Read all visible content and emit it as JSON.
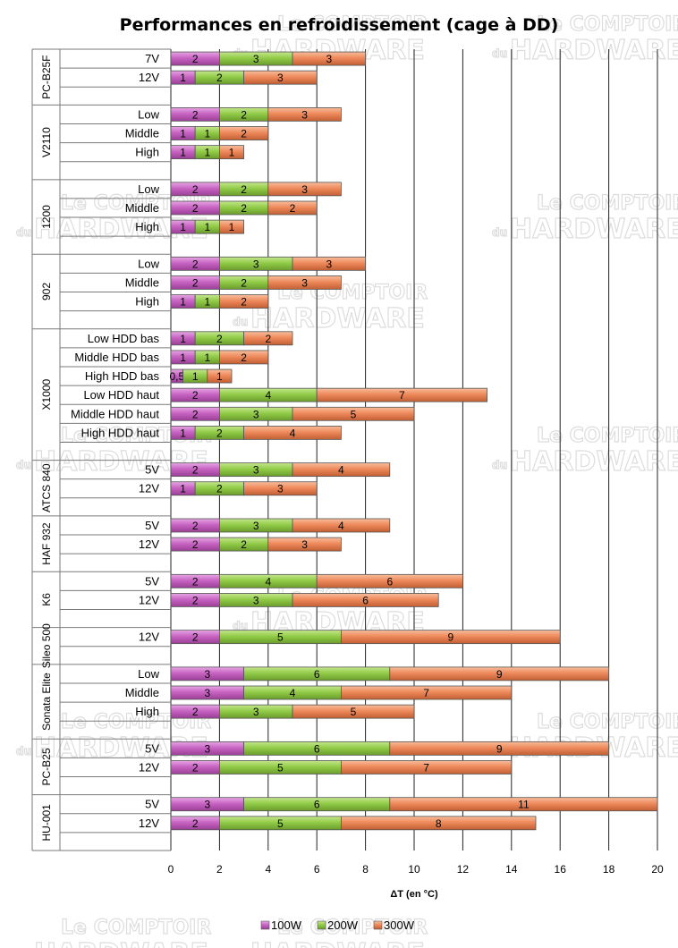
{
  "chart_data": {
    "type": "bar",
    "orientation": "horizontal",
    "stacked": true,
    "title": "Performances en refroidissement (cage à DD)",
    "xlabel": "ΔT (en °C)",
    "xlim": [
      0,
      20
    ],
    "xticks": [
      "0",
      "2",
      "4",
      "6",
      "8",
      "10",
      "12",
      "14",
      "16",
      "18",
      "20"
    ],
    "grid": true,
    "legend_position": "bottom",
    "series": [
      {
        "name": "100W",
        "color": "#c864c3"
      },
      {
        "name": "200W",
        "color": "#92cc48"
      },
      {
        "name": "300W",
        "color": "#ee8a5c"
      }
    ],
    "groups": [
      {
        "name": "PC-B25F",
        "rows": [
          {
            "label": "7V",
            "values": [
              2,
              3,
              3
            ],
            "labels": [
              "2",
              "3",
              "3"
            ]
          },
          {
            "label": "12V",
            "values": [
              1,
              2,
              3
            ],
            "labels": [
              "1",
              "2",
              "3"
            ]
          }
        ]
      },
      {
        "name": "V2110",
        "rows": [
          {
            "label": "Low",
            "values": [
              2,
              2,
              3
            ],
            "labels": [
              "2",
              "2",
              "3"
            ]
          },
          {
            "label": "Middle",
            "values": [
              1,
              1,
              2
            ],
            "labels": [
              "1",
              "1",
              "2"
            ]
          },
          {
            "label": "High",
            "values": [
              1,
              1,
              1
            ],
            "labels": [
              "1",
              "1",
              "1"
            ]
          }
        ]
      },
      {
        "name": "1200",
        "rows": [
          {
            "label": "Low",
            "values": [
              2,
              2,
              3
            ],
            "labels": [
              "2",
              "2",
              "3"
            ]
          },
          {
            "label": "Middle",
            "values": [
              2,
              2,
              2
            ],
            "labels": [
              "2",
              "2",
              "2"
            ]
          },
          {
            "label": "High",
            "values": [
              1,
              1,
              1
            ],
            "labels": [
              "1",
              "1",
              "1"
            ]
          }
        ]
      },
      {
        "name": "902",
        "rows": [
          {
            "label": "Low",
            "values": [
              2,
              3,
              3
            ],
            "labels": [
              "2",
              "3",
              "3"
            ]
          },
          {
            "label": "Middle",
            "values": [
              2,
              2,
              3
            ],
            "labels": [
              "2",
              "2",
              "3"
            ]
          },
          {
            "label": "High",
            "values": [
              1,
              1,
              2
            ],
            "labels": [
              "1",
              "1",
              "2"
            ]
          }
        ]
      },
      {
        "name": "X1000",
        "rows": [
          {
            "label": "Low HDD bas",
            "values": [
              1,
              2,
              2
            ],
            "labels": [
              "1",
              "2",
              "2"
            ]
          },
          {
            "label": "Middle HDD bas",
            "values": [
              1,
              1,
              2
            ],
            "labels": [
              "1",
              "1",
              "2"
            ]
          },
          {
            "label": "High HDD bas",
            "values": [
              0.5,
              1,
              1
            ],
            "labels": [
              "0,5",
              "1",
              "1"
            ]
          },
          {
            "label": "Low HDD haut",
            "values": [
              2,
              4,
              7
            ],
            "labels": [
              "2",
              "4",
              "7"
            ]
          },
          {
            "label": "Middle HDD haut",
            "values": [
              2,
              3,
              5
            ],
            "labels": [
              "2",
              "3",
              "5"
            ]
          },
          {
            "label": "High HDD haut",
            "values": [
              1,
              2,
              4
            ],
            "labels": [
              "1",
              "2",
              "4"
            ]
          }
        ]
      },
      {
        "name": "ATCS 840",
        "rows": [
          {
            "label": "5V",
            "values": [
              2,
              3,
              4
            ],
            "labels": [
              "2",
              "3",
              "4"
            ]
          },
          {
            "label": "12V",
            "values": [
              1,
              2,
              3
            ],
            "labels": [
              "1",
              "2",
              "3"
            ]
          }
        ]
      },
      {
        "name": "HAF 932",
        "rows": [
          {
            "label": "5V",
            "values": [
              2,
              3,
              4
            ],
            "labels": [
              "2",
              "3",
              "4"
            ]
          },
          {
            "label": "12V",
            "values": [
              2,
              2,
              3
            ],
            "labels": [
              "2",
              "2",
              "3"
            ]
          }
        ]
      },
      {
        "name": "K6",
        "rows": [
          {
            "label": "5V",
            "values": [
              2,
              4,
              6
            ],
            "labels": [
              "2",
              "4",
              "6"
            ]
          },
          {
            "label": "12V",
            "values": [
              2,
              3,
              6
            ],
            "labels": [
              "2",
              "3",
              "6"
            ]
          }
        ]
      },
      {
        "name": "Sileo 500",
        "rows": [
          {
            "label": "12V",
            "values": [
              2,
              5,
              9
            ],
            "labels": [
              "2",
              "5",
              "9"
            ]
          }
        ]
      },
      {
        "name": "Sonata Elite",
        "rows": [
          {
            "label": "Low",
            "values": [
              3,
              6,
              9
            ],
            "labels": [
              "3",
              "6",
              "9"
            ]
          },
          {
            "label": "Middle",
            "values": [
              3,
              4,
              7
            ],
            "labels": [
              "3",
              "4",
              "7"
            ]
          },
          {
            "label": "High",
            "values": [
              2,
              3,
              5
            ],
            "labels": [
              "2",
              "3",
              "5"
            ]
          }
        ]
      },
      {
        "name": "PC-B25",
        "rows": [
          {
            "label": "5V",
            "values": [
              3,
              6,
              9
            ],
            "labels": [
              "3",
              "6",
              "9"
            ]
          },
          {
            "label": "12V",
            "values": [
              2,
              5,
              7
            ],
            "labels": [
              "2",
              "5",
              "7"
            ]
          }
        ]
      },
      {
        "name": "HU-001",
        "rows": [
          {
            "label": "5V",
            "values": [
              3,
              6,
              11
            ],
            "labels": [
              "3",
              "6",
              "11"
            ]
          },
          {
            "label": "12V",
            "values": [
              2,
              5,
              8
            ],
            "labels": [
              "2",
              "5",
              "8"
            ]
          }
        ]
      }
    ]
  },
  "watermark": {
    "line1": "Le COMPTOIR",
    "line2_small": "du",
    "line2": "HARDWARE"
  }
}
